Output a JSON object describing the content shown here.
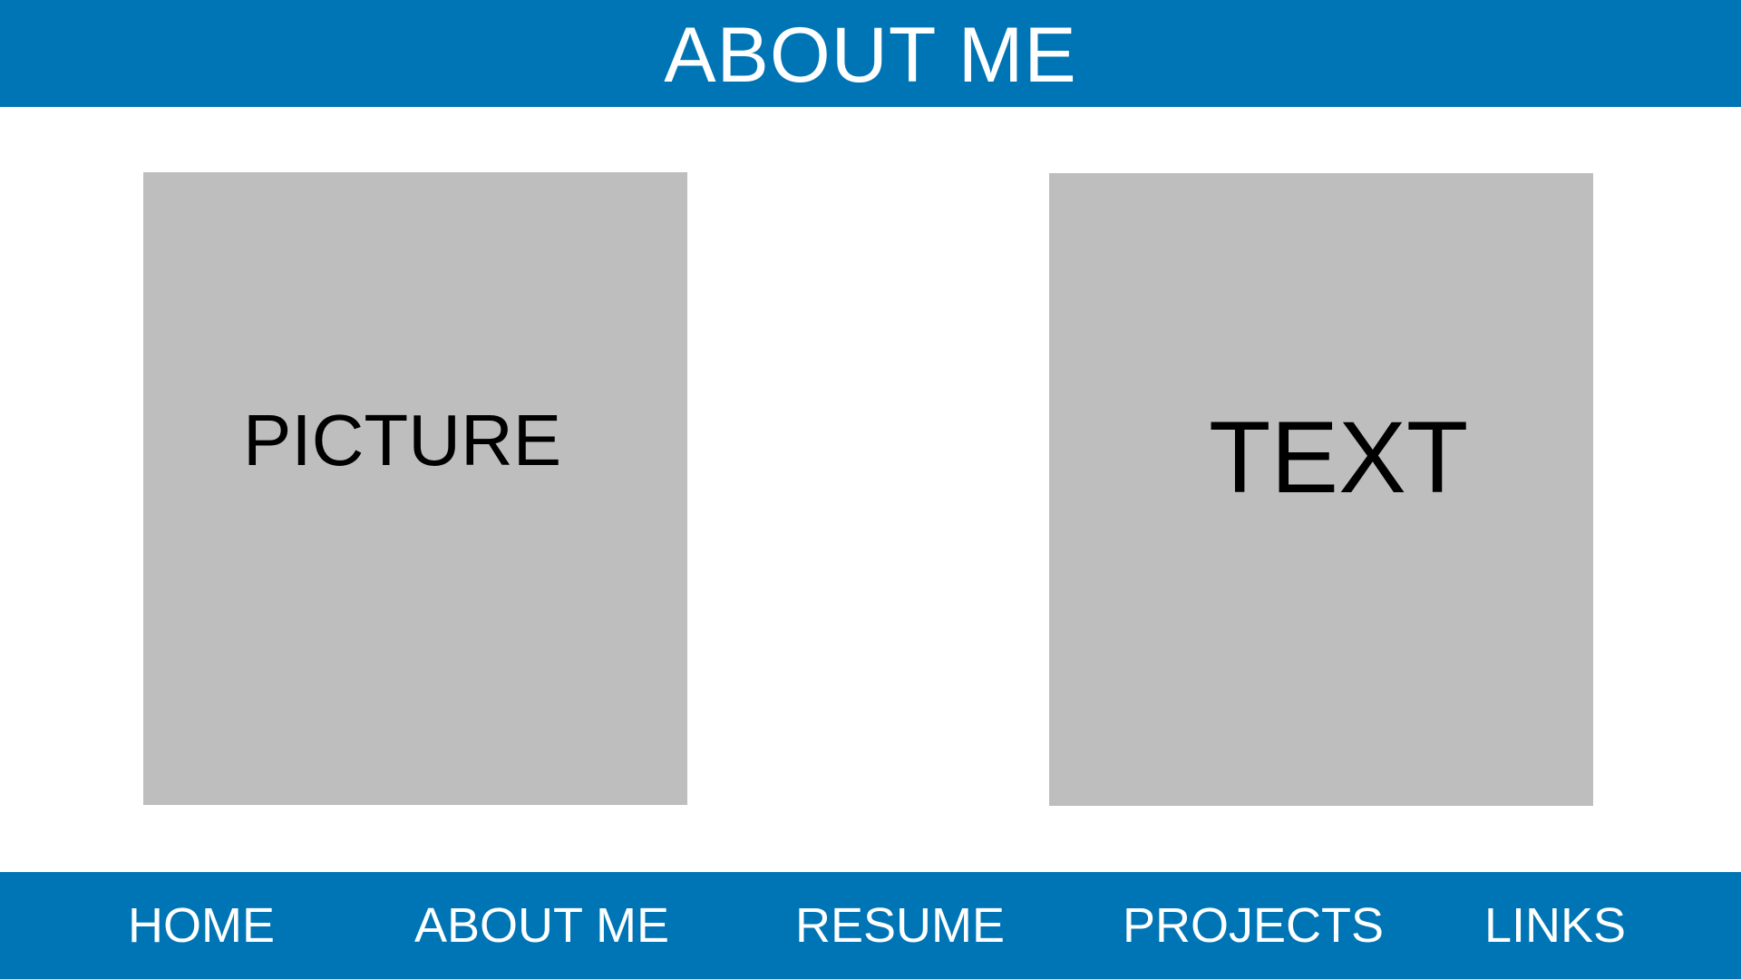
{
  "header": {
    "title": "ABOUT ME",
    "background_color": "#0075b5"
  },
  "content": {
    "picture_panel": {
      "label": "PICTURE",
      "color": "#bebebe"
    },
    "text_panel": {
      "label": "TEXT",
      "color": "#bebebe"
    }
  },
  "footer": {
    "background_color": "#0075b5",
    "nav": [
      {
        "label": "HOME"
      },
      {
        "label": "ABOUT ME"
      },
      {
        "label": "RESUME"
      },
      {
        "label": "PROJECTS"
      },
      {
        "label": "LINKS"
      }
    ]
  }
}
